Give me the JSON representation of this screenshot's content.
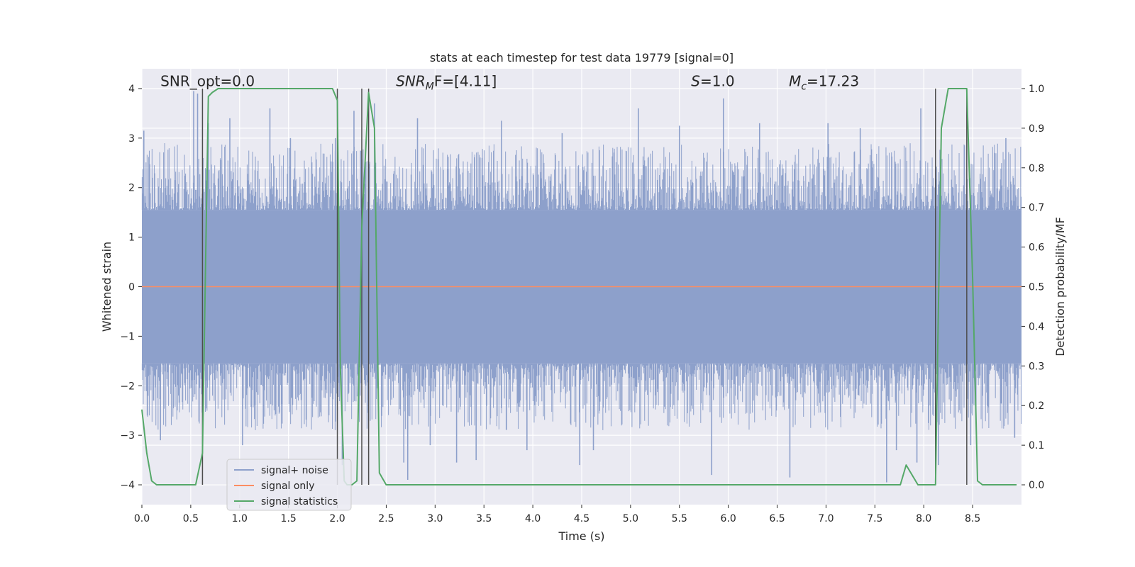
{
  "chart_data": {
    "type": "line",
    "title": "stats at each timestep for test data 19779 [signal=0]",
    "xlabel": "Time (s)",
    "ylabel_left": "Whitened strain",
    "ylabel_right": "Detection probability/MF",
    "xlim": [
      0.0,
      9.0
    ],
    "ylim_left": [
      -4.4,
      4.4
    ],
    "ylim_right": [
      -0.05,
      1.05
    ],
    "x_ticks": [
      "0.0",
      "0.5",
      "1.0",
      "1.5",
      "2.0",
      "2.5",
      "3.0",
      "3.5",
      "4.0",
      "4.5",
      "5.0",
      "5.5",
      "6.0",
      "6.5",
      "7.0",
      "7.5",
      "8.0",
      "8.5"
    ],
    "y_ticks_left": [
      "4",
      "3",
      "2",
      "1",
      "0",
      "−1",
      "−2",
      "−3",
      "−4"
    ],
    "y_ticks_right": [
      "1.0",
      "0.9",
      "0.8",
      "0.7",
      "0.6",
      "0.5",
      "0.4",
      "0.3",
      "0.2",
      "0.1",
      "0.0"
    ],
    "grid": true,
    "annotations": [
      {
        "text": "SNR_opt=0.0",
        "x": 0.19,
        "y": 4.05
      },
      {
        "base": "SNR",
        "sub": "M",
        "rest": "F=[4.11]",
        "x": 2.6,
        "y": 4.05
      },
      {
        "base": "S",
        "rest": "=1.0",
        "x": 5.62,
        "y": 4.05
      },
      {
        "base": "M",
        "sub": "c",
        "rest": "=17.23",
        "x": 6.62,
        "y": 4.05
      }
    ],
    "vertical_markers": [
      0.62,
      2.0,
      2.25,
      2.32,
      8.12,
      8.44
    ],
    "series": [
      {
        "name": "signal+ noise",
        "color": "#8da0cb",
        "style": "noise band",
        "band_core": 1.55,
        "band_typical": 2.4,
        "band_extreme": 3.95,
        "spikes": [
          {
            "x": 0.02,
            "y": 3.15
          },
          {
            "x": 0.12,
            "y": -2.3
          },
          {
            "x": 0.19,
            "y": -3.1
          },
          {
            "x": 0.53,
            "y": 3.95
          },
          {
            "x": 0.57,
            "y": 3.9
          },
          {
            "x": 0.68,
            "y": 3.3
          },
          {
            "x": 0.9,
            "y": 3.4
          },
          {
            "x": 1.03,
            "y": -3.2
          },
          {
            "x": 1.31,
            "y": 3.6
          },
          {
            "x": 1.52,
            "y": 3.0
          },
          {
            "x": 1.98,
            "y": 3.0
          },
          {
            "x": 2.05,
            "y": -3.6
          },
          {
            "x": 2.17,
            "y": 3.55
          },
          {
            "x": 2.38,
            "y": 3.7
          },
          {
            "x": 2.68,
            "y": -3.55
          },
          {
            "x": 2.72,
            "y": -3.9
          },
          {
            "x": 2.82,
            "y": 3.4
          },
          {
            "x": 2.95,
            "y": -3.2
          },
          {
            "x": 3.22,
            "y": -3.55
          },
          {
            "x": 3.42,
            "y": -3.5
          },
          {
            "x": 3.68,
            "y": 3.35
          },
          {
            "x": 3.94,
            "y": -3.3
          },
          {
            "x": 4.3,
            "y": 3.1
          },
          {
            "x": 4.48,
            "y": -3.6
          },
          {
            "x": 4.62,
            "y": -3.3
          },
          {
            "x": 5.08,
            "y": 3.6
          },
          {
            "x": 5.5,
            "y": 3.25
          },
          {
            "x": 5.83,
            "y": -3.8
          },
          {
            "x": 5.95,
            "y": 3.8
          },
          {
            "x": 6.32,
            "y": 3.3
          },
          {
            "x": 6.63,
            "y": -3.85
          },
          {
            "x": 7.02,
            "y": 3.3
          },
          {
            "x": 7.35,
            "y": 3.2
          },
          {
            "x": 7.62,
            "y": -3.95
          },
          {
            "x": 7.72,
            "y": -3.3
          },
          {
            "x": 7.93,
            "y": -3.55
          },
          {
            "x": 7.97,
            "y": 3.6
          },
          {
            "x": 8.15,
            "y": -3.6
          },
          {
            "x": 8.48,
            "y": -3.2
          },
          {
            "x": 8.84,
            "y": 3.0
          },
          {
            "x": 8.93,
            "y": -3.05
          }
        ]
      },
      {
        "name": "signal only",
        "color": "#fc8d62",
        "x": [
          0.0,
          9.0
        ],
        "y": [
          0.0,
          0.0
        ]
      },
      {
        "name": "signal statistics",
        "color": "#55a868",
        "axis": "right",
        "x": [
          0.0,
          0.05,
          0.1,
          0.15,
          0.2,
          0.3,
          0.4,
          0.5,
          0.55,
          0.62,
          0.68,
          0.72,
          0.78,
          0.85,
          1.0,
          1.5,
          1.95,
          2.0,
          2.03,
          2.07,
          2.1,
          2.15,
          2.2,
          2.25,
          2.32,
          2.38,
          2.43,
          2.5,
          2.6,
          3.0,
          4.0,
          5.0,
          6.0,
          7.0,
          7.5,
          7.76,
          7.82,
          7.94,
          8.0,
          8.12,
          8.18,
          8.25,
          8.32,
          8.44,
          8.5,
          8.55,
          8.6,
          8.7,
          8.95
        ],
        "y": [
          0.19,
          0.08,
          0.01,
          0.0,
          0.0,
          0.0,
          0.0,
          0.0,
          0.0,
          0.08,
          0.98,
          0.99,
          1.0,
          1.0,
          1.0,
          1.0,
          1.0,
          0.97,
          0.3,
          0.01,
          0.0,
          0.0,
          0.01,
          0.65,
          0.99,
          0.9,
          0.03,
          0.0,
          0.0,
          0.0,
          0.0,
          0.0,
          0.0,
          0.0,
          0.0,
          0.0,
          0.05,
          0.0,
          0.0,
          0.0,
          0.9,
          1.0,
          1.0,
          1.0,
          0.52,
          0.01,
          0.0,
          0.0,
          0.0
        ]
      }
    ],
    "legend": {
      "placement": "lower-left",
      "entries": [
        "signal+ noise",
        "signal only",
        "signal statistics"
      ]
    }
  }
}
